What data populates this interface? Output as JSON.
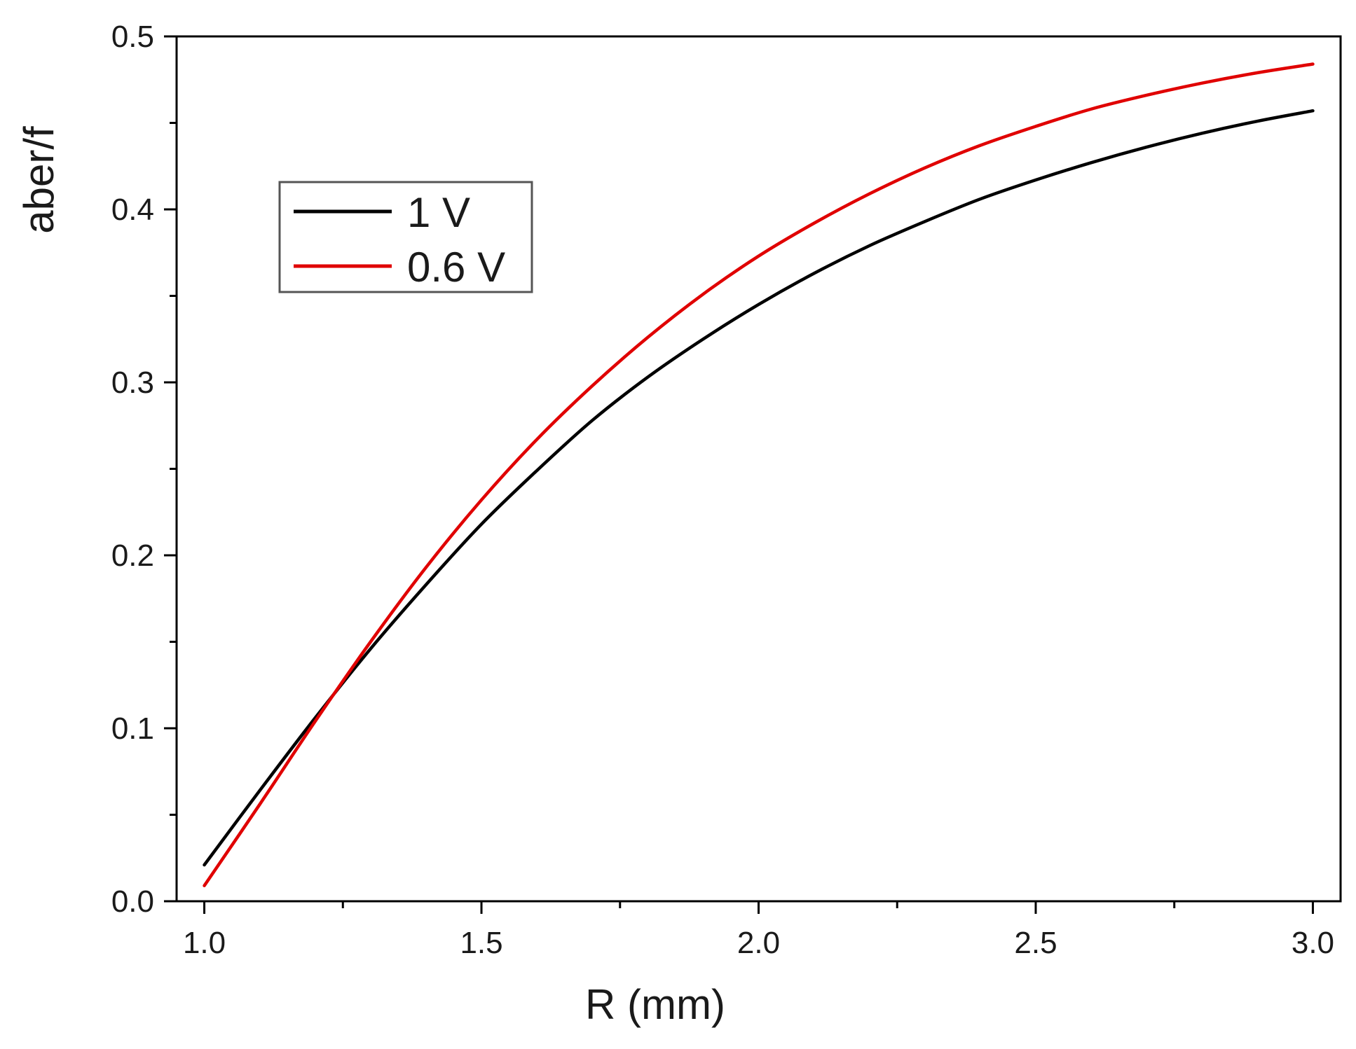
{
  "chart_data": {
    "type": "line",
    "xlabel": "R (mm)",
    "ylabel": "aber/f",
    "xlim": [
      0.95,
      3.05
    ],
    "ylim": [
      0.0,
      0.5
    ],
    "xticks": [
      1.0,
      1.5,
      2.0,
      2.5,
      3.0
    ],
    "xtick_labels": [
      "1.0",
      "1.5",
      "2.0",
      "2.5",
      "3.0"
    ],
    "yticks": [
      0.0,
      0.1,
      0.2,
      0.3,
      0.4,
      0.5
    ],
    "ytick_labels": [
      "0.0",
      "0.1",
      "0.2",
      "0.3",
      "0.4",
      "0.5"
    ],
    "x_minor_step": 0.25,
    "y_minor_step": 0.05,
    "grid": false,
    "legend_position": "upper-left",
    "series": [
      {
        "name": "1 V",
        "color": "#000000",
        "x": [
          1.0,
          1.1,
          1.2,
          1.3,
          1.4,
          1.5,
          1.6,
          1.7,
          1.8,
          1.9,
          2.0,
          2.1,
          2.2,
          2.3,
          2.4,
          2.5,
          2.6,
          2.7,
          2.8,
          2.9,
          3.0
        ],
        "y": [
          0.021,
          0.064,
          0.106,
          0.146,
          0.183,
          0.218,
          0.249,
          0.278,
          0.303,
          0.325,
          0.345,
          0.363,
          0.379,
          0.393,
          0.406,
          0.417,
          0.427,
          0.436,
          0.444,
          0.451,
          0.457
        ]
      },
      {
        "name": "0.6 V",
        "color": "#e00000",
        "x": [
          1.0,
          1.1,
          1.2,
          1.3,
          1.4,
          1.5,
          1.6,
          1.7,
          1.8,
          1.9,
          2.0,
          2.1,
          2.2,
          2.3,
          2.4,
          2.5,
          2.6,
          2.7,
          2.8,
          2.9,
          3.0
        ],
        "y": [
          0.009,
          0.056,
          0.104,
          0.15,
          0.193,
          0.232,
          0.267,
          0.298,
          0.326,
          0.351,
          0.373,
          0.392,
          0.409,
          0.424,
          0.437,
          0.448,
          0.458,
          0.466,
          0.473,
          0.479,
          0.484
        ]
      }
    ]
  }
}
